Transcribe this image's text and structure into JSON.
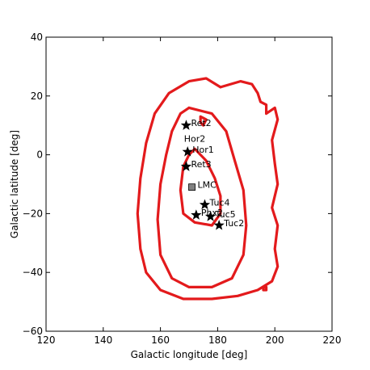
{
  "chart_data": {
    "type": "line",
    "title": "",
    "xlabel": "Galactic longitude [deg]",
    "ylabel": "Galactic latitude [deg]",
    "xlim": [
      120,
      220
    ],
    "ylim": [
      -60,
      40
    ],
    "xticks": [
      120,
      140,
      160,
      180,
      200,
      220
    ],
    "yticks": [
      -60,
      -40,
      -20,
      0,
      20,
      40
    ],
    "xtick_labels": [
      "120",
      "140",
      "160",
      "180",
      "200",
      "220"
    ],
    "ytick_labels": [
      "−60",
      "−40",
      "−20",
      "0",
      "20",
      "40"
    ],
    "grid": false,
    "contour_color": "#e31a1c",
    "contours": [
      {
        "level": "outer",
        "points": [
          [
            181,
            23
          ],
          [
            188,
            25
          ],
          [
            192,
            24
          ],
          [
            194,
            21
          ],
          [
            195,
            18
          ],
          [
            197,
            17
          ],
          [
            197,
            14
          ],
          [
            200,
            16
          ],
          [
            201,
            12
          ],
          [
            199,
            5
          ],
          [
            200,
            -3
          ],
          [
            201,
            -10
          ],
          [
            199,
            -18
          ],
          [
            201,
            -24
          ],
          [
            200,
            -32
          ],
          [
            201,
            -38
          ],
          [
            199,
            -43
          ],
          [
            194,
            -46
          ],
          [
            187,
            -48
          ],
          [
            178,
            -49
          ],
          [
            168,
            -49
          ],
          [
            160,
            -46
          ],
          [
            155,
            -40
          ],
          [
            153,
            -32
          ],
          [
            152,
            -20
          ],
          [
            153,
            -8
          ],
          [
            155,
            4
          ],
          [
            158,
            14
          ],
          [
            163,
            21
          ],
          [
            170,
            25
          ],
          [
            176,
            26
          ],
          [
            181,
            23
          ]
        ]
      },
      {
        "level": "middle",
        "points": [
          [
            170,
            16
          ],
          [
            178,
            14
          ],
          [
            183,
            8
          ],
          [
            186,
            -2
          ],
          [
            189,
            -12
          ],
          [
            190,
            -24
          ],
          [
            189,
            -34
          ],
          [
            185,
            -42
          ],
          [
            178,
            -45
          ],
          [
            170,
            -45
          ],
          [
            164,
            -42
          ],
          [
            160,
            -34
          ],
          [
            159,
            -22
          ],
          [
            160,
            -10
          ],
          [
            162,
            0
          ],
          [
            164,
            8
          ],
          [
            167,
            14
          ],
          [
            170,
            16
          ]
        ]
      },
      {
        "level": "inner",
        "points": [
          [
            172,
            2
          ],
          [
            176,
            -2
          ],
          [
            179,
            -8
          ],
          [
            181,
            -14
          ],
          [
            181,
            -20
          ],
          [
            178,
            -24
          ],
          [
            172,
            -23
          ],
          [
            168,
            -20
          ],
          [
            167,
            -12
          ],
          [
            168,
            -4
          ],
          [
            170,
            0
          ],
          [
            172,
            2
          ]
        ]
      },
      {
        "level": "small-blob",
        "points": [
          [
            174,
            13
          ],
          [
            176,
            12
          ],
          [
            175,
            10
          ],
          [
            174,
            11
          ],
          [
            174,
            13
          ]
        ]
      },
      {
        "level": "small-dot-right",
        "points": [
          [
            196,
            -45
          ],
          [
            197,
            -45
          ],
          [
            197,
            -46
          ],
          [
            196,
            -46
          ],
          [
            196,
            -45
          ]
        ]
      }
    ],
    "stars": [
      {
        "name": "Ret2",
        "x": 169.0,
        "y": 10.0
      },
      {
        "name": "Hor1",
        "x": 169.5,
        "y": 1.0
      },
      {
        "name": "Ret3",
        "x": 169.0,
        "y": -4.0
      },
      {
        "name": "Tuc4",
        "x": 175.5,
        "y": -17.0
      },
      {
        "name": "Phx2",
        "x": 172.5,
        "y": -20.5
      },
      {
        "name": "Tuc5",
        "x": 177.5,
        "y": -21.0
      },
      {
        "name": "Tuc2",
        "x": 180.5,
        "y": -24.0
      }
    ],
    "extra_labels": [
      {
        "name": "Hor2",
        "x": 170.5,
        "y": 5.5
      }
    ],
    "lmc": {
      "name": "LMC",
      "x": 171.0,
      "y": -11.0,
      "color": "#808080"
    }
  }
}
